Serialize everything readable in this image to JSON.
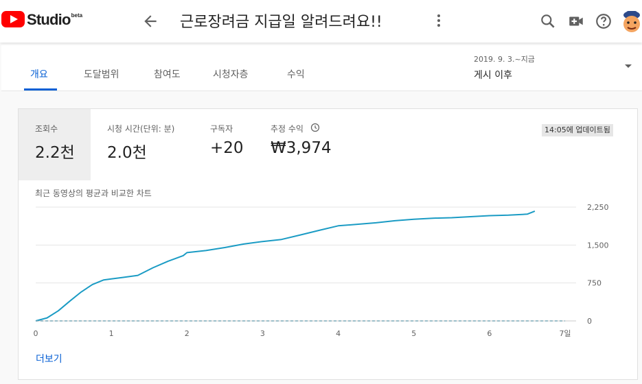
{
  "header": {
    "logo_text": "Studio",
    "logo_badge": "beta",
    "video_title": "근로장려금 지급일 알려드려요!!",
    "icons": [
      "back-arrow-icon",
      "more-vert-icon",
      "search-icon",
      "create-video-icon",
      "help-icon",
      "avatar"
    ]
  },
  "tabs": [
    {
      "label": "개요",
      "active": true
    },
    {
      "label": "도달범위",
      "active": false
    },
    {
      "label": "참여도",
      "active": false
    },
    {
      "label": "시청자층",
      "active": false
    },
    {
      "label": "수익",
      "active": false
    }
  ],
  "date_range": {
    "detail": "2019. 9. 3.~지금",
    "label": "게시 이후"
  },
  "metrics": [
    {
      "label": "조회수",
      "value": "2.2천",
      "selected": true
    },
    {
      "label": "시청 시간(단위: 분)",
      "value": "2.0천",
      "selected": false
    },
    {
      "label": "구독자",
      "value": "+20",
      "selected": false
    },
    {
      "label": "추정 수익",
      "value": "₩3,974",
      "selected": false
    }
  ],
  "updated_badge": "14:05에 업데이트됨",
  "chart_caption": "최근 동영상의 평균과 비교한 차트",
  "more_link": "더보기",
  "colors": {
    "accent": "#065fd4",
    "line": "#1a9bc4",
    "brand_red": "#ff0000"
  },
  "chart_data": {
    "type": "line",
    "x_tick_labels": [
      "0",
      "1",
      "2",
      "3",
      "4",
      "5",
      "6",
      "7일"
    ],
    "y_tick_labels": [
      "0",
      "750",
      "1,500",
      "2,250"
    ],
    "xlim": [
      0,
      7
    ],
    "ylim": [
      0,
      2250
    ],
    "grid": true,
    "series": [
      {
        "style": "solid",
        "x": [
          0,
          0.15,
          0.3,
          0.45,
          0.6,
          0.75,
          0.9,
          1.0,
          1.15,
          1.35,
          1.55,
          1.75,
          1.95,
          2.0,
          2.25,
          2.5,
          2.75,
          3.0,
          3.25,
          3.5,
          3.75,
          4.0,
          4.25,
          4.5,
          4.75,
          5.0,
          5.25,
          5.5,
          5.75,
          6.0,
          6.25,
          6.5,
          6.6
        ],
        "y": [
          0,
          60,
          200,
          390,
          570,
          720,
          810,
          830,
          860,
          900,
          1050,
          1180,
          1290,
          1350,
          1390,
          1450,
          1520,
          1570,
          1610,
          1700,
          1790,
          1880,
          1910,
          1940,
          1980,
          2010,
          2030,
          2040,
          2060,
          2080,
          2090,
          2110,
          2170
        ]
      },
      {
        "style": "dashed",
        "x": [
          0,
          7
        ],
        "y": [
          0,
          0
        ]
      }
    ]
  }
}
